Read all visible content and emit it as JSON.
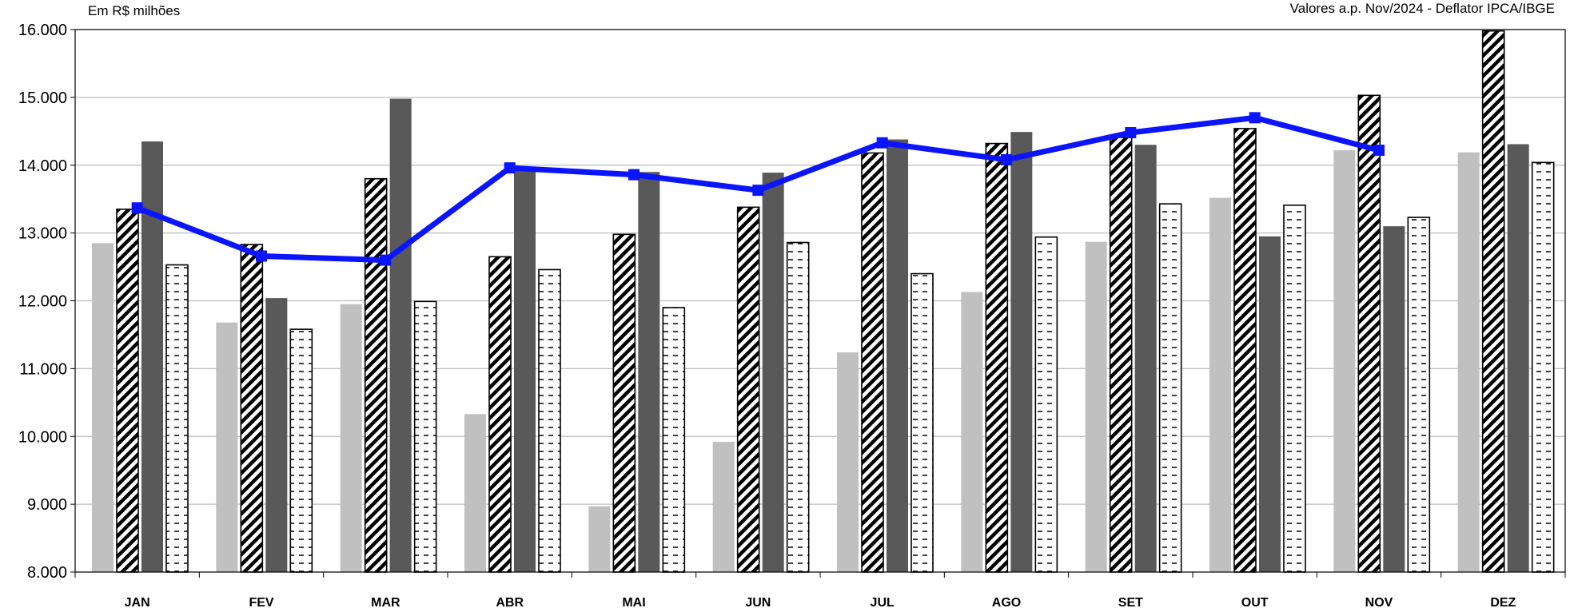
{
  "header": {
    "unit": "Em R$ milhões",
    "note": "Valores a.p. Nov/2024 - Deflator IPCA/IBGE"
  },
  "colors": {
    "series1": "#c0c0c0",
    "series3": "#595959",
    "line": "#0a14ff",
    "grid": "#bdbdbd",
    "axis": "#000000"
  },
  "chart_data": {
    "type": "bar",
    "categories": [
      "JAN",
      "FEV",
      "MAR",
      "ABR",
      "MAI",
      "JUN",
      "JUL",
      "AGO",
      "SET",
      "OUT",
      "NOV",
      "DEZ"
    ],
    "ylim": [
      8000,
      16000
    ],
    "yticks": [
      8000,
      9000,
      10000,
      11000,
      12000,
      13000,
      14000,
      15000,
      16000
    ],
    "ytick_labels": [
      "8.000",
      "9.000",
      "10.000",
      "11.000",
      "12.000",
      "13.000",
      "14.000",
      "15.000",
      "16.000"
    ],
    "grid": true,
    "legend": "none",
    "series": [
      {
        "style": "solid-light-gray",
        "values": [
          12850,
          11680,
          11950,
          10330,
          8970,
          9920,
          11240,
          12130,
          12870,
          13520,
          14220,
          14190
        ]
      },
      {
        "style": "diagonal-hatch",
        "values": [
          13350,
          12830,
          13800,
          12650,
          12980,
          13380,
          14180,
          14320,
          14410,
          14540,
          15030,
          15980
        ]
      },
      {
        "style": "solid-dark-gray",
        "values": [
          14350,
          12040,
          14980,
          13930,
          13900,
          13890,
          14380,
          14490,
          14300,
          12950,
          13100,
          14310
        ]
      },
      {
        "style": "dashed-hatch",
        "values": [
          12530,
          11580,
          11990,
          12460,
          11900,
          12860,
          12400,
          12940,
          13430,
          13410,
          13230,
          14040
        ]
      }
    ],
    "line": {
      "values": [
        13370,
        12660,
        12600,
        13960,
        13860,
        13630,
        14330,
        14080,
        14480,
        14700,
        14220
      ]
    }
  }
}
